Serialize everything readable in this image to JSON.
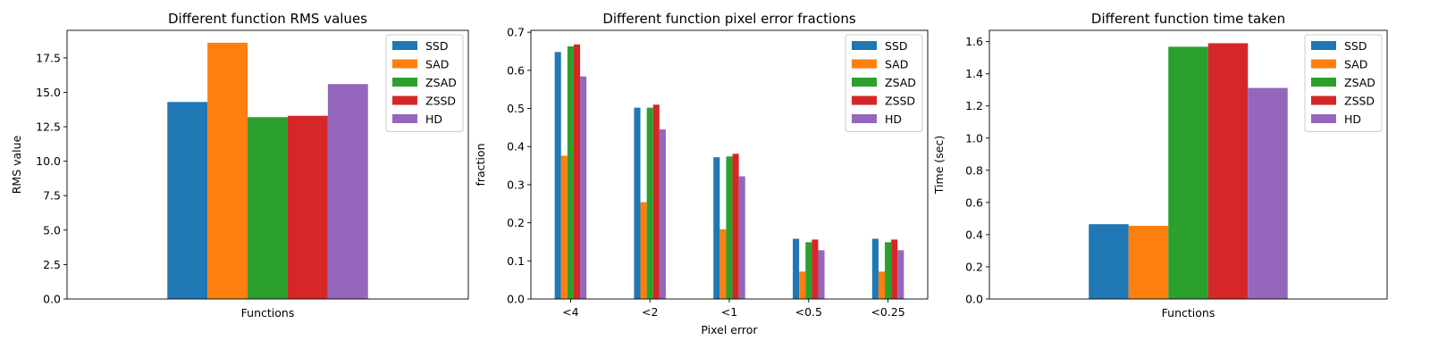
{
  "series_colors": [
    "#1f77b4",
    "#ff7f0e",
    "#2ca02c",
    "#d62728",
    "#9467bd"
  ],
  "chart_data": [
    {
      "type": "bar",
      "title": "Different function RMS values",
      "xlabel": "Functions",
      "ylabel": "RMS value",
      "ylim": [
        0,
        19.5
      ],
      "yticks": [
        "0.0",
        "2.5",
        "5.0",
        "7.5",
        "10.0",
        "12.5",
        "15.0",
        "17.5"
      ],
      "ytick_values": [
        0,
        2.5,
        5,
        7.5,
        10,
        12.5,
        15,
        17.5
      ],
      "categories": [
        ""
      ],
      "category_tick_mode": "xlabel-only",
      "grid": false,
      "legend_position": "top-right",
      "series": [
        {
          "name": "SSD",
          "values": [
            14.3
          ]
        },
        {
          "name": "SAD",
          "values": [
            18.6
          ]
        },
        {
          "name": "ZSAD",
          "values": [
            13.2
          ]
        },
        {
          "name": "ZSSD",
          "values": [
            13.3
          ]
        },
        {
          "name": "HD",
          "values": [
            15.6
          ]
        }
      ]
    },
    {
      "type": "bar",
      "title": "Different function pixel error fractions",
      "xlabel": "Pixel error",
      "ylabel": "fraction",
      "ylim": [
        0,
        0.705
      ],
      "yticks": [
        "0.0",
        "0.1",
        "0.2",
        "0.3",
        "0.4",
        "0.5",
        "0.6",
        "0.7"
      ],
      "ytick_values": [
        0,
        0.1,
        0.2,
        0.3,
        0.4,
        0.5,
        0.6,
        0.7
      ],
      "categories": [
        "<4",
        "<2",
        "<1",
        "<0.5",
        "<0.25"
      ],
      "category_tick_mode": "categories",
      "grid": false,
      "legend_position": "top-right",
      "series": [
        {
          "name": "SSD",
          "values": [
            0.648,
            0.502,
            0.372,
            0.158,
            0.158
          ]
        },
        {
          "name": "SAD",
          "values": [
            0.376,
            0.254,
            0.183,
            0.072,
            0.072
          ]
        },
        {
          "name": "ZSAD",
          "values": [
            0.663,
            0.502,
            0.374,
            0.149,
            0.149
          ]
        },
        {
          "name": "ZSSD",
          "values": [
            0.668,
            0.51,
            0.381,
            0.156,
            0.156
          ]
        },
        {
          "name": "HD",
          "values": [
            0.584,
            0.445,
            0.322,
            0.128,
            0.128
          ]
        }
      ]
    },
    {
      "type": "bar",
      "title": "Different function time taken",
      "xlabel": "Functions",
      "ylabel": "Time (sec)",
      "ylim": [
        0,
        1.67
      ],
      "yticks": [
        "0.0",
        "0.2",
        "0.4",
        "0.6",
        "0.8",
        "1.0",
        "1.2",
        "1.4",
        "1.6"
      ],
      "ytick_values": [
        0,
        0.2,
        0.4,
        0.6,
        0.8,
        1.0,
        1.2,
        1.4,
        1.6
      ],
      "categories": [
        ""
      ],
      "category_tick_mode": "xlabel-only",
      "grid": false,
      "legend_position": "top-right",
      "series": [
        {
          "name": "SSD",
          "values": [
            0.465
          ]
        },
        {
          "name": "SAD",
          "values": [
            0.455
          ]
        },
        {
          "name": "ZSAD",
          "values": [
            1.568
          ]
        },
        {
          "name": "ZSSD",
          "values": [
            1.59
          ]
        },
        {
          "name": "HD",
          "values": [
            1.312
          ]
        }
      ]
    }
  ]
}
